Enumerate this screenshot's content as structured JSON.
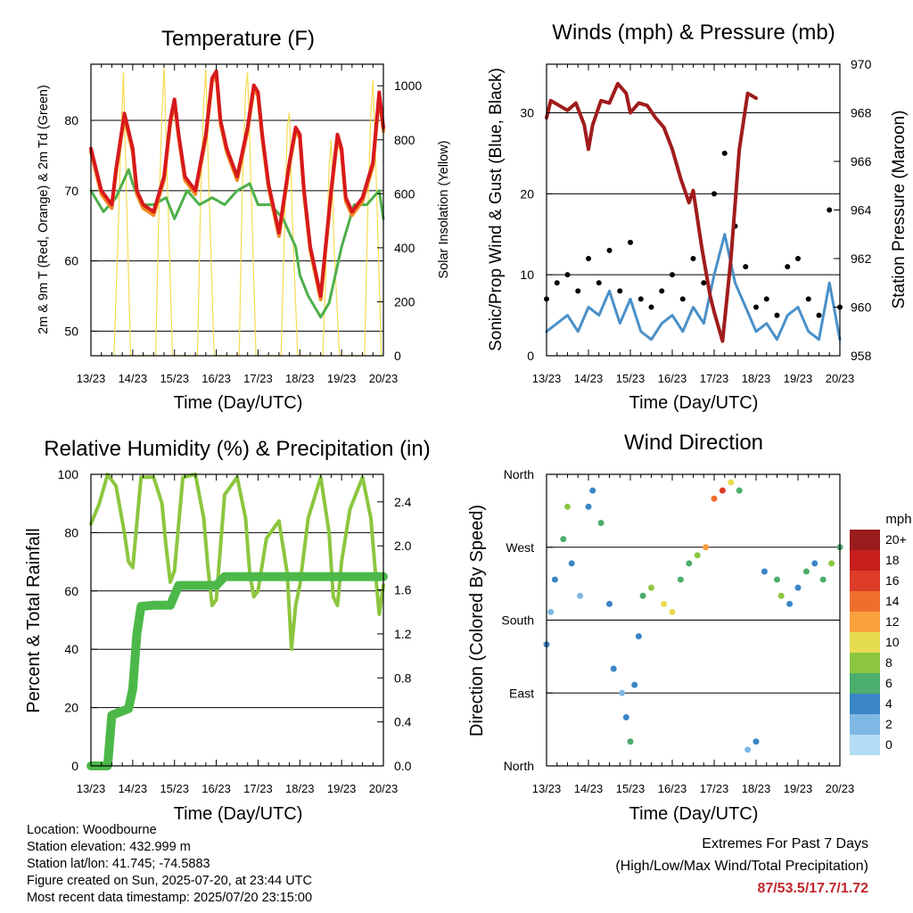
{
  "info": {
    "location": "Location: Woodbourne",
    "elevation": "Station elevation: 432.999 m",
    "latlon": "Station lat/lon: 41.745; -74.5883",
    "created": "Figure created on Sun, 2025-07-20, at 23:44 UTC",
    "recent": "Most recent data timestamp: 2025/07/20 23:15:00"
  },
  "extremes": {
    "title": "Extremes For Past 7 Days",
    "subtitle": "(High/Low/Max Wind/Total Precipitation)",
    "values": "87/53.5/17.7/1.72"
  },
  "colors": {
    "temp_9m": "#d7191c",
    "temp_2m": "#f08a24",
    "dewpoint": "#4daf4a",
    "solar": "#f5dc50",
    "gust": "#000000",
    "wind": "#4a90c8",
    "pressure": "#a01c1c",
    "rh": "#8cc63f",
    "precip": "#4db84a"
  },
  "chart_data": [
    {
      "type": "line",
      "title": "Temperature (F)",
      "xlabel": "Time (Day/UTC)",
      "ylabel": "2m & 9m T (Red, Orange) & 2m Td (Green)",
      "ylabel_right": "Solar Insolation (Yellow)",
      "x_ticks": [
        "13/23",
        "14/23",
        "15/23",
        "16/23",
        "17/23",
        "18/23",
        "19/23",
        "20/23"
      ],
      "ylim": [
        46.5,
        88
      ],
      "y_ticks": [
        50,
        60,
        70,
        80
      ],
      "ylim_right": [
        0,
        1080
      ],
      "y_ticks_right": [
        0,
        200,
        400,
        600,
        800,
        1000
      ],
      "grid": true,
      "series": [
        {
          "name": "9m T",
          "x": [
            0,
            0.25,
            0.5,
            0.6,
            0.8,
            1.0,
            1.1,
            1.25,
            1.5,
            1.75,
            1.9,
            2.0,
            2.1,
            2.25,
            2.5,
            2.75,
            2.9,
            3.0,
            3.1,
            3.25,
            3.5,
            3.75,
            3.9,
            4.0,
            4.1,
            4.25,
            4.5,
            4.75,
            4.9,
            5.0,
            5.1,
            5.25,
            5.5,
            5.75,
            5.9,
            6.0,
            6.1,
            6.25,
            6.5,
            6.75,
            6.9,
            7.0
          ],
          "y": [
            76,
            70,
            68,
            73,
            81,
            76,
            70,
            68,
            67,
            72,
            80,
            83,
            78,
            72,
            70,
            78,
            86,
            87,
            80,
            76,
            72,
            79,
            85,
            84,
            78,
            71,
            64,
            74,
            79,
            78,
            70,
            62,
            55,
            70,
            78,
            76,
            69,
            67,
            69,
            74,
            84,
            79
          ]
        },
        {
          "name": "2m T",
          "x": [
            0,
            0.25,
            0.5,
            0.6,
            0.8,
            1.0,
            1.1,
            1.25,
            1.5,
            1.75,
            1.9,
            2.0,
            2.1,
            2.25,
            2.5,
            2.75,
            2.9,
            3.0,
            3.1,
            3.25,
            3.5,
            3.75,
            3.9,
            4.0,
            4.1,
            4.25,
            4.5,
            4.75,
            4.9,
            5.0,
            5.1,
            5.25,
            5.5,
            5.75,
            5.9,
            6.0,
            6.1,
            6.25,
            6.5,
            6.75,
            6.9,
            7.0
          ],
          "y": [
            75.5,
            69.5,
            67.5,
            72.5,
            80.5,
            75.5,
            69.5,
            67.5,
            66.5,
            71.5,
            79.5,
            82.5,
            77.5,
            71.5,
            69.5,
            77.5,
            85.5,
            86.5,
            79.5,
            75.5,
            71.5,
            78.5,
            84.5,
            83.5,
            77.5,
            70.5,
            63.5,
            73.5,
            78.5,
            77.5,
            69.5,
            61.5,
            54.5,
            69.5,
            77.5,
            75.5,
            68.5,
            66.5,
            68.5,
            73.5,
            83.5,
            78.5
          ]
        },
        {
          "name": "2m Td",
          "x": [
            0,
            0.3,
            0.6,
            0.9,
            1.0,
            1.2,
            1.5,
            1.8,
            2.0,
            2.3,
            2.6,
            2.9,
            3.2,
            3.5,
            3.8,
            4.0,
            4.3,
            4.6,
            4.9,
            5.0,
            5.2,
            5.5,
            5.7,
            6.0,
            6.3,
            6.6,
            6.9,
            7.0
          ],
          "y": [
            70,
            67,
            69,
            73,
            71,
            68,
            68,
            69,
            66,
            70,
            68,
            69,
            68,
            70,
            71,
            68,
            68,
            66,
            62,
            58,
            55,
            52,
            54,
            62,
            68,
            68,
            70,
            66
          ]
        },
        {
          "name": "Solar",
          "x": [
            0.55,
            0.65,
            0.72,
            0.78,
            0.85,
            0.95,
            1.55,
            1.62,
            1.7,
            1.75,
            1.82,
            1.95,
            2.55,
            2.62,
            2.7,
            2.75,
            2.82,
            2.95,
            3.55,
            3.62,
            3.7,
            3.75,
            3.82,
            3.95,
            4.55,
            4.62,
            4.7,
            4.75,
            4.82,
            4.95,
            5.55,
            5.62,
            5.7,
            5.75,
            5.82,
            5.95,
            6.55,
            6.62,
            6.7,
            6.75,
            6.82,
            6.95
          ],
          "y": [
            0,
            450,
            820,
            1050,
            600,
            0,
            0,
            500,
            900,
            1070,
            700,
            0,
            0,
            550,
            950,
            1060,
            650,
            0,
            0,
            600,
            980,
            1050,
            700,
            0,
            0,
            400,
            850,
            900,
            500,
            0,
            0,
            300,
            700,
            800,
            400,
            0,
            0,
            500,
            900,
            1020,
            700,
            0
          ]
        }
      ]
    },
    {
      "type": "line",
      "title": "Winds (mph) & Pressure (mb)",
      "xlabel": "Time (Day/UTC)",
      "ylabel": "Sonic/Prop Wind & Gust (Blue, Black)",
      "ylabel_right": "Station Pressure (Maroon)",
      "x_ticks": [
        "13/23",
        "14/23",
        "15/23",
        "16/23",
        "17/23",
        "18/23",
        "19/23",
        "20/23"
      ],
      "ylim": [
        0,
        36
      ],
      "y_ticks": [
        0,
        10,
        20,
        30
      ],
      "ylim_right": [
        958,
        970
      ],
      "y_ticks_right": [
        958,
        960,
        962,
        964,
        966,
        968,
        970
      ],
      "grid": true,
      "series": [
        {
          "name": "Pressure",
          "x": [
            0,
            0.1,
            0.3,
            0.5,
            0.7,
            0.9,
            1.0,
            1.1,
            1.3,
            1.5,
            1.7,
            1.9,
            2.0,
            2.2,
            2.4,
            2.6,
            2.8,
            3.0,
            3.2,
            3.4,
            3.5,
            3.7,
            3.9,
            4.0,
            4.2,
            4.4,
            4.6,
            4.8,
            5.0
          ],
          "y": [
            967.8,
            968.5,
            968.3,
            968.1,
            968.4,
            967.5,
            966.5,
            967.5,
            968.5,
            968.4,
            969.2,
            968.8,
            968.0,
            968.4,
            968.3,
            967.8,
            967.4,
            966.5,
            965.3,
            964.3,
            964.8,
            962.5,
            960.5,
            959.8,
            958.6,
            962,
            966.5,
            968.8,
            968.6
          ]
        },
        {
          "name": "Wind",
          "x": [
            0,
            0.25,
            0.5,
            0.75,
            1.0,
            1.25,
            1.5,
            1.75,
            2.0,
            2.25,
            2.5,
            2.75,
            3.0,
            3.25,
            3.5,
            3.75,
            4.0,
            4.25,
            4.5,
            4.75,
            5.0,
            5.25,
            5.5,
            5.75,
            6.0,
            6.25,
            6.5,
            6.75,
            7.0
          ],
          "y": [
            3,
            4,
            5,
            3,
            6,
            5,
            8,
            4,
            7,
            3,
            2,
            4,
            5,
            3,
            6,
            4,
            10,
            15,
            9,
            6,
            3,
            4,
            2,
            5,
            6,
            3,
            2,
            9,
            2
          ]
        },
        {
          "name": "Gust",
          "x": [
            0,
            0.25,
            0.5,
            0.75,
            1.0,
            1.25,
            1.5,
            1.75,
            2.0,
            2.25,
            2.5,
            2.75,
            3.0,
            3.25,
            3.5,
            3.75,
            4.0,
            4.25,
            4.5,
            4.75,
            5.0,
            5.25,
            5.5,
            5.75,
            6.0,
            6.25,
            6.5,
            6.75,
            7.0
          ],
          "y": [
            7,
            9,
            10,
            8,
            12,
            9,
            13,
            8,
            14,
            7,
            6,
            8,
            10,
            7,
            12,
            9,
            20,
            25,
            16,
            11,
            6,
            7,
            5,
            11,
            12,
            7,
            5,
            18,
            6
          ]
        }
      ]
    },
    {
      "type": "line",
      "title": "Relative Humidity (%) & Precipitation (in)",
      "xlabel": "Time (Day/UTC)",
      "ylabel": "Percent & Total Rainfall",
      "x_ticks": [
        "13/23",
        "14/23",
        "15/23",
        "16/23",
        "17/23",
        "18/23",
        "19/23",
        "20/23"
      ],
      "ylim": [
        0,
        100
      ],
      "y_ticks": [
        0,
        20,
        40,
        60,
        80,
        100
      ],
      "ylim_right": [
        0,
        2.65
      ],
      "y_ticks_right": [
        "0.0",
        "0.4",
        "0.8",
        "1.2",
        "1.6",
        "2.0",
        "2.4"
      ],
      "grid": true,
      "series": [
        {
          "name": "RH",
          "x": [
            0,
            0.2,
            0.4,
            0.6,
            0.8,
            0.9,
            1.0,
            1.2,
            1.5,
            1.7,
            1.8,
            1.9,
            2.0,
            2.2,
            2.5,
            2.7,
            2.8,
            2.9,
            3.0,
            3.2,
            3.5,
            3.7,
            3.8,
            3.9,
            4.0,
            4.2,
            4.5,
            4.7,
            4.8,
            4.9,
            5.0,
            5.2,
            5.5,
            5.7,
            5.8,
            5.9,
            6.0,
            6.2,
            6.5,
            6.7,
            6.8,
            6.9,
            7.0
          ],
          "y": [
            83,
            90,
            100,
            96,
            80,
            70,
            68,
            99,
            99,
            90,
            75,
            63,
            67,
            99,
            100,
            85,
            68,
            55,
            57,
            93,
            99,
            85,
            66,
            58,
            60,
            78,
            84,
            66,
            40,
            55,
            62,
            85,
            99,
            80,
            58,
            55,
            70,
            88,
            99,
            85,
            68,
            52,
            62
          ]
        },
        {
          "name": "Precipitation",
          "x": [
            0,
            0.4,
            0.5,
            0.9,
            1.0,
            1.1,
            1.2,
            1.5,
            1.9,
            2.0,
            2.1,
            2.5,
            3.0,
            3.2,
            3.5,
            4.0,
            5.0,
            6.0,
            7.0
          ],
          "y": [
            0,
            0,
            0.46,
            0.52,
            0.7,
            1.2,
            1.45,
            1.46,
            1.46,
            1.55,
            1.64,
            1.64,
            1.64,
            1.72,
            1.72,
            1.72,
            1.72,
            1.72,
            1.72
          ]
        }
      ]
    },
    {
      "type": "scatter",
      "title": "Wind Direction",
      "xlabel": "Time (Day/UTC)",
      "ylabel": "Direction (Colored By Speed)",
      "x_ticks": [
        "13/23",
        "14/23",
        "15/23",
        "16/23",
        "17/23",
        "18/23",
        "19/23",
        "20/23"
      ],
      "y_ticks": [
        "North",
        "East",
        "South",
        "West",
        "North"
      ],
      "legend_title": "mph",
      "legend_labels": [
        "20+",
        "18",
        "16",
        "14",
        "12",
        "10",
        "8",
        "6",
        "4",
        "2",
        "0"
      ],
      "legend_colors": [
        "#9b1c1c",
        "#c81e1e",
        "#dc3c28",
        "#f06e2d",
        "#faa03c",
        "#e6dc50",
        "#8cc63f",
        "#4cae6c",
        "#3a86c6",
        "#7fb8e4",
        "#b4dcf4"
      ],
      "grid": true,
      "x": [
        0.0,
        0.1,
        0.2,
        0.4,
        0.5,
        0.6,
        0.8,
        1.0,
        1.1,
        1.3,
        1.5,
        1.6,
        1.8,
        1.9,
        2.0,
        2.1,
        2.2,
        2.3,
        2.5,
        2.8,
        3.0,
        3.2,
        3.4,
        3.6,
        3.8,
        4.0,
        4.2,
        4.4,
        4.6,
        4.8,
        5.0,
        5.2,
        5.5,
        5.6,
        5.8,
        6.0,
        6.2,
        6.4,
        6.6,
        6.8,
        7.0
      ],
      "y": [
        150,
        190,
        230,
        280,
        320,
        250,
        210,
        320,
        340,
        300,
        200,
        120,
        90,
        60,
        30,
        100,
        160,
        210,
        220,
        200,
        190,
        230,
        250,
        260,
        270,
        330,
        340,
        350,
        340,
        20,
        30,
        240,
        230,
        210,
        200,
        220,
        240,
        250,
        230,
        250,
        270
      ],
      "speed": [
        3,
        2,
        3,
        6,
        8,
        4,
        2,
        3,
        4,
        5,
        4,
        3,
        2,
        3,
        6,
        4,
        3,
        5,
        7,
        10,
        9,
        6,
        5,
        8,
        12,
        14,
        16,
        9,
        6,
        2,
        3,
        4,
        5,
        8,
        3,
        4,
        5,
        4,
        6,
        8,
        5
      ]
    }
  ]
}
